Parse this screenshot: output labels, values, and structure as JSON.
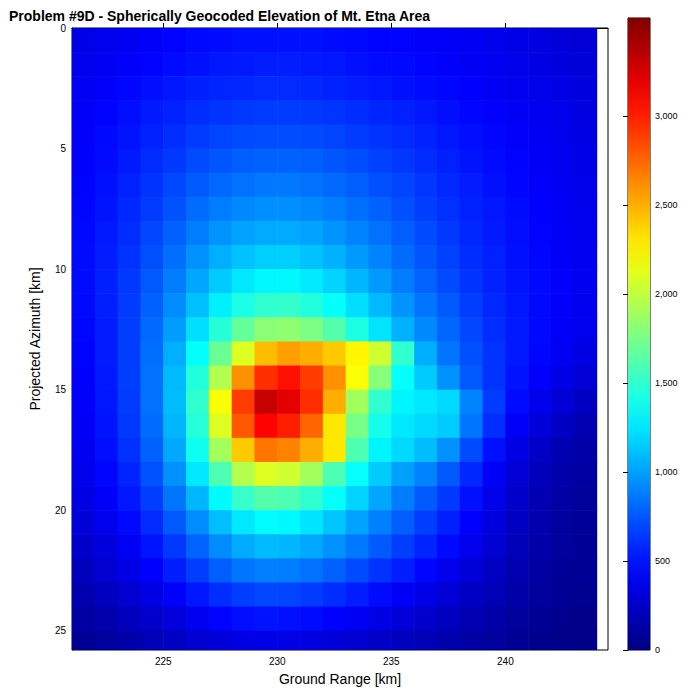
{
  "chart_data": {
    "type": "heatmap",
    "title": "Problem #9D - Spherically Geocoded Elevation of Mt. Etna Area",
    "x_label": "Ground Range [km]",
    "y_label": "Projected Azimuth [km]",
    "xlim": [
      221,
      244.5
    ],
    "xticks": [
      225,
      230,
      235,
      240
    ],
    "ylim": [
      0,
      25.8
    ],
    "yticks": [
      0,
      5,
      10,
      15,
      20,
      25
    ],
    "colorbar_range": [
      0,
      3550
    ],
    "colorbar_ticks": [
      0,
      500,
      1000,
      1500,
      2000,
      2500,
      3000
    ],
    "x": [
      221.5,
      222.5,
      223.5,
      224.5,
      225.5,
      226.5,
      227.5,
      228.5,
      229.5,
      230.5,
      231.5,
      232.5,
      233.5,
      234.5,
      235.5,
      236.5,
      237.5,
      238.5,
      239.5,
      240.5,
      241.5,
      242.5,
      243.5
    ],
    "y": [
      0.5,
      1.5,
      2.5,
      3.5,
      4.5,
      5.5,
      6.5,
      7.5,
      8.5,
      9.5,
      10.5,
      11.5,
      12.5,
      13.5,
      14.5,
      15.5,
      16.5,
      17.5,
      18.5,
      19.5,
      20.5,
      21.5,
      22.5,
      23.5,
      24.5,
      25.5
    ],
    "values": [
      [
        350,
        380,
        400,
        420,
        450,
        470,
        480,
        500,
        500,
        500,
        500,
        480,
        470,
        450,
        450,
        430,
        420,
        400,
        380,
        360,
        340,
        320,
        300
      ],
      [
        380,
        400,
        430,
        450,
        480,
        500,
        520,
        530,
        540,
        540,
        530,
        520,
        500,
        480,
        470,
        450,
        430,
        410,
        390,
        370,
        350,
        330,
        310
      ],
      [
        400,
        430,
        460,
        490,
        520,
        550,
        570,
        580,
        590,
        590,
        580,
        560,
        540,
        520,
        500,
        480,
        460,
        440,
        410,
        390,
        370,
        350,
        330
      ],
      [
        420,
        450,
        490,
        530,
        560,
        600,
        620,
        640,
        650,
        650,
        640,
        620,
        600,
        570,
        550,
        520,
        490,
        460,
        430,
        410,
        390,
        370,
        340
      ],
      [
        430,
        470,
        510,
        560,
        600,
        650,
        680,
        700,
        710,
        710,
        700,
        680,
        650,
        620,
        590,
        560,
        520,
        490,
        460,
        430,
        400,
        380,
        350
      ],
      [
        440,
        480,
        530,
        590,
        640,
        700,
        740,
        770,
        780,
        780,
        770,
        740,
        710,
        670,
        630,
        590,
        550,
        510,
        480,
        450,
        420,
        390,
        360
      ],
      [
        450,
        500,
        560,
        620,
        690,
        760,
        810,
        840,
        860,
        860,
        840,
        810,
        770,
        720,
        680,
        630,
        580,
        540,
        500,
        460,
        430,
        400,
        370
      ],
      [
        460,
        510,
        580,
        650,
        730,
        820,
        880,
        920,
        940,
        940,
        920,
        880,
        830,
        780,
        720,
        660,
        610,
        560,
        520,
        480,
        440,
        410,
        380
      ],
      [
        470,
        530,
        600,
        690,
        780,
        880,
        960,
        1010,
        1040,
        1040,
        1010,
        960,
        900,
        840,
        770,
        700,
        640,
        580,
        530,
        490,
        450,
        420,
        380
      ],
      [
        480,
        540,
        620,
        720,
        830,
        950,
        1050,
        1120,
        1160,
        1160,
        1120,
        1060,
        980,
        900,
        820,
        740,
        670,
        600,
        550,
        500,
        460,
        420,
        390
      ],
      [
        480,
        550,
        640,
        750,
        880,
        1020,
        1150,
        1250,
        1310,
        1310,
        1260,
        1180,
        1080,
        980,
        880,
        790,
        700,
        620,
        560,
        510,
        470,
        430,
        390
      ],
      [
        470,
        550,
        650,
        780,
        930,
        1110,
        1280,
        1420,
        1500,
        1510,
        1450,
        1350,
        1220,
        1090,
        960,
        850,
        750,
        660,
        580,
        520,
        470,
        430,
        390
      ],
      [
        460,
        540,
        660,
        810,
        990,
        1220,
        1460,
        1680,
        1810,
        1830,
        1760,
        1620,
        1430,
        1240,
        1060,
        920,
        800,
        690,
        600,
        530,
        470,
        420,
        380
      ],
      [
        450,
        540,
        660,
        830,
        1050,
        1340,
        1700,
        2100,
        2450,
        2550,
        2500,
        2400,
        2250,
        2050,
        1500,
        1050,
        850,
        720,
        620,
        530,
        460,
        400,
        350
      ],
      [
        440,
        530,
        660,
        840,
        1090,
        1450,
        1950,
        2600,
        2950,
        3050,
        2900,
        2600,
        2200,
        1800,
        1350,
        1150,
        950,
        750,
        620,
        510,
        430,
        360,
        300
      ],
      [
        430,
        520,
        650,
        840,
        1100,
        1500,
        2200,
        2900,
        3300,
        3200,
        2950,
        2500,
        1900,
        1500,
        1300,
        1250,
        1200,
        900,
        650,
        480,
        380,
        300,
        240
      ],
      [
        420,
        510,
        640,
        820,
        1080,
        1460,
        2100,
        2800,
        3100,
        3000,
        2750,
        2300,
        1750,
        1400,
        1250,
        1200,
        1150,
        850,
        600,
        420,
        320,
        240,
        180
      ],
      [
        400,
        490,
        610,
        780,
        1030,
        1380,
        1900,
        2400,
        2700,
        2650,
        2500,
        2300,
        1600,
        1300,
        1200,
        1100,
        950,
        700,
        500,
        350,
        250,
        180,
        140
      ],
      [
        380,
        460,
        570,
        730,
        950,
        1250,
        1600,
        1950,
        2100,
        2050,
        1900,
        1600,
        1350,
        1150,
        1000,
        900,
        750,
        580,
        420,
        300,
        210,
        150,
        120
      ],
      [
        350,
        420,
        520,
        660,
        850,
        1080,
        1320,
        1520,
        1620,
        1600,
        1500,
        1350,
        1180,
        1020,
        880,
        760,
        640,
        500,
        370,
        260,
        180,
        130,
        100
      ],
      [
        310,
        380,
        470,
        590,
        750,
        930,
        1110,
        1250,
        1320,
        1310,
        1240,
        1130,
        1010,
        890,
        770,
        660,
        550,
        440,
        330,
        230,
        160,
        110,
        90
      ],
      [
        270,
        330,
        410,
        510,
        640,
        790,
        930,
        1040,
        1090,
        1080,
        1030,
        950,
        860,
        760,
        660,
        570,
        470,
        380,
        290,
        200,
        140,
        100,
        80
      ],
      [
        220,
        280,
        350,
        440,
        540,
        660,
        770,
        850,
        890,
        880,
        840,
        780,
        700,
        620,
        540,
        460,
        380,
        310,
        240,
        170,
        120,
        90,
        70
      ],
      [
        170,
        220,
        280,
        350,
        430,
        520,
        600,
        660,
        690,
        680,
        650,
        600,
        540,
        480,
        420,
        360,
        300,
        240,
        190,
        140,
        100,
        70,
        60
      ],
      [
        120,
        160,
        210,
        260,
        320,
        390,
        450,
        490,
        510,
        500,
        480,
        440,
        400,
        350,
        310,
        260,
        220,
        180,
        140,
        100,
        70,
        50,
        40
      ],
      [
        80,
        110,
        150,
        190,
        230,
        280,
        320,
        350,
        360,
        360,
        340,
        310,
        280,
        250,
        220,
        190,
        160,
        130,
        100,
        70,
        50,
        40,
        30
      ]
    ]
  }
}
